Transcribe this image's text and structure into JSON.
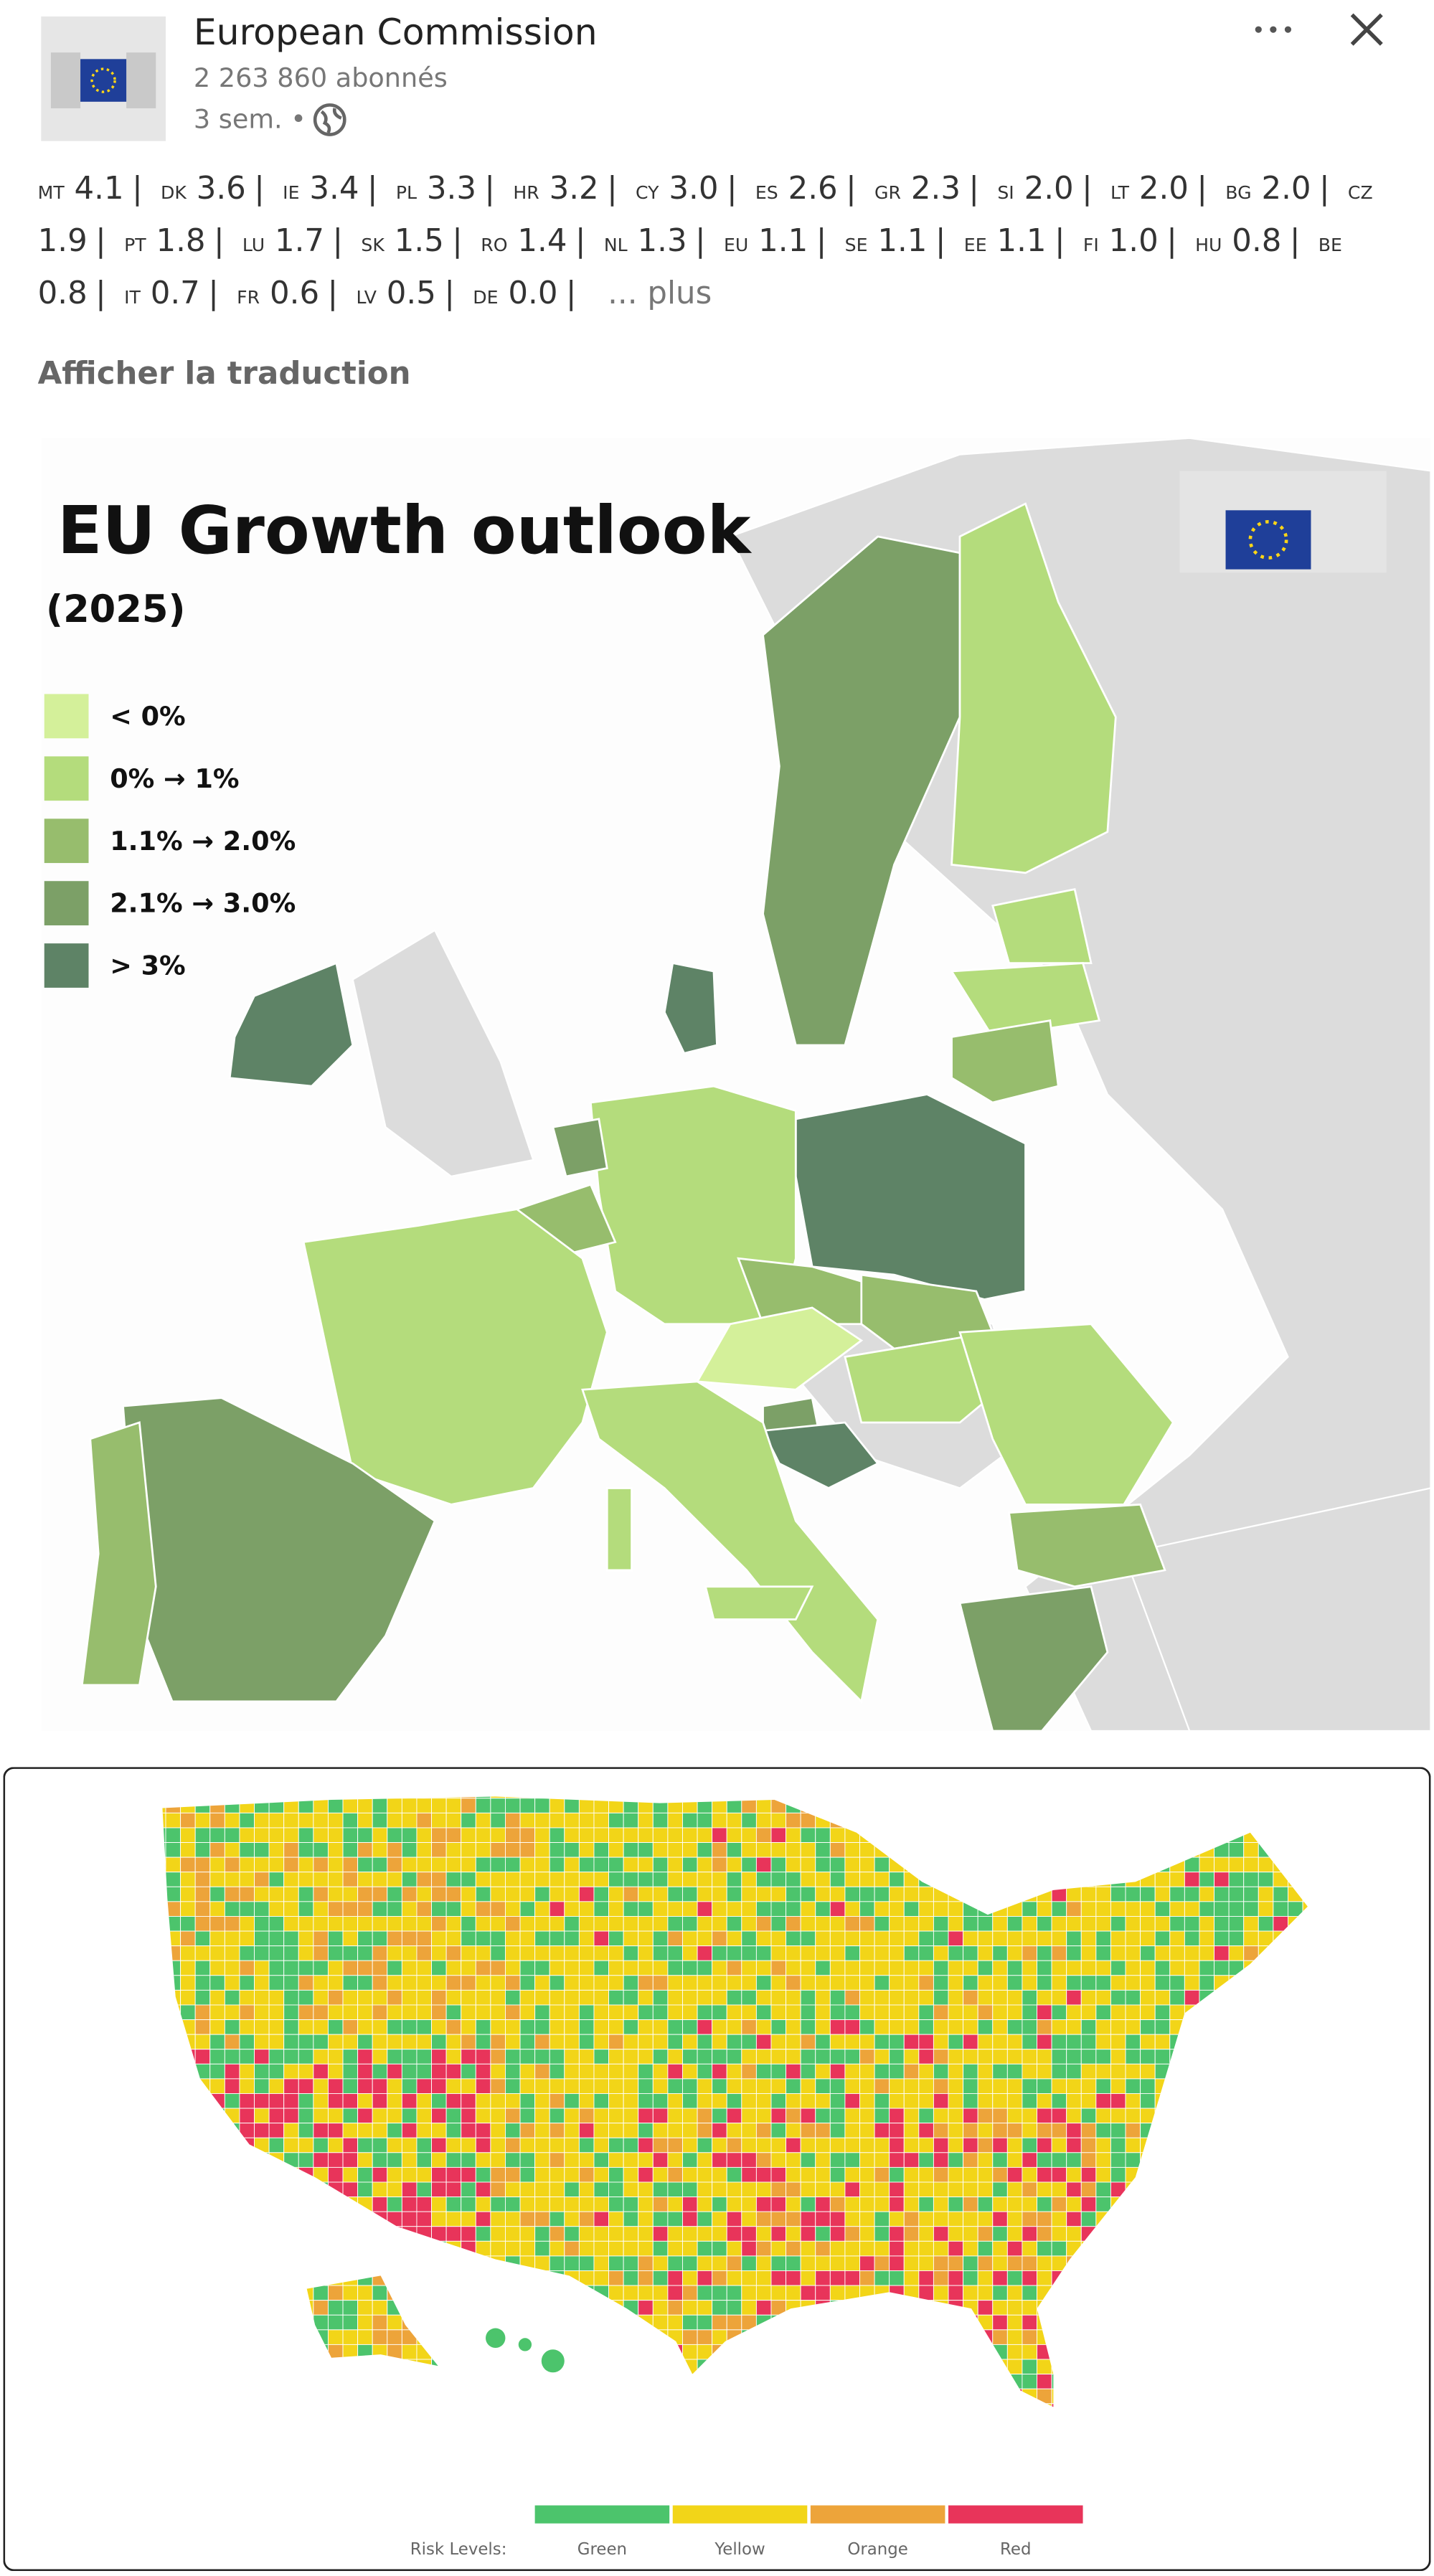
{
  "header": {
    "author": "European Commission",
    "followers": "2 263 860 abonnés",
    "time": "3 sem. •"
  },
  "post": {
    "separator": "|",
    "items": [
      {
        "code": "MT",
        "value": "4.1"
      },
      {
        "code": "DK",
        "value": "3.6"
      },
      {
        "code": "IE",
        "value": "3.4"
      },
      {
        "code": "PL",
        "value": "3.3"
      },
      {
        "code": "HR",
        "value": "3.2"
      },
      {
        "code": "CY",
        "value": "3.0"
      },
      {
        "code": "ES",
        "value": "2.6"
      },
      {
        "code": "GR",
        "value": "2.3"
      },
      {
        "code": "SI",
        "value": "2.0"
      },
      {
        "code": "LT",
        "value": "2.0"
      },
      {
        "code": "BG",
        "value": "2.0"
      },
      {
        "code": "CZ",
        "value": "1.9"
      },
      {
        "code": "PT",
        "value": "1.8"
      },
      {
        "code": "LU",
        "value": "1.7"
      },
      {
        "code": "SK",
        "value": "1.5"
      },
      {
        "code": "RO",
        "value": "1.4"
      },
      {
        "code": "NL",
        "value": "1.3"
      },
      {
        "code": "EU",
        "value": "1.1"
      },
      {
        "code": "SE",
        "value": "1.1"
      },
      {
        "code": "EE",
        "value": "1.1"
      },
      {
        "code": "FI",
        "value": "1.0"
      },
      {
        "code": "HU",
        "value": "0.8"
      },
      {
        "code": "BE",
        "value": "0.8"
      },
      {
        "code": "IT",
        "value": "0.7"
      },
      {
        "code": "FR",
        "value": "0.6"
      },
      {
        "code": "LV",
        "value": "0.5"
      },
      {
        "code": "DE",
        "value": "0.0"
      }
    ],
    "more": "... plus",
    "translate": "Afficher la traduction"
  },
  "eu_map": {
    "title": "EU Growth outlook",
    "subtitle": "(2025)",
    "legend": [
      {
        "label": "< 0%",
        "color": "#d4f09a"
      },
      {
        "label": "0% → 1%",
        "color": "#b4dc7c"
      },
      {
        "label": "1.1% → 2.0%",
        "color": "#97bd6d"
      },
      {
        "label": "2.1% → 3.0%",
        "color": "#7ca067"
      },
      {
        "label": "> 3%",
        "color": "#5e8366"
      }
    ]
  },
  "us_map": {
    "legend_title": "Risk Levels:",
    "legend": [
      {
        "label": "Green",
        "color": "#4cc46c"
      },
      {
        "label": "Yellow",
        "color": "#f2d518"
      },
      {
        "label": "Orange",
        "color": "#eda43a"
      },
      {
        "label": "Red",
        "color": "#e8345a"
      }
    ]
  }
}
